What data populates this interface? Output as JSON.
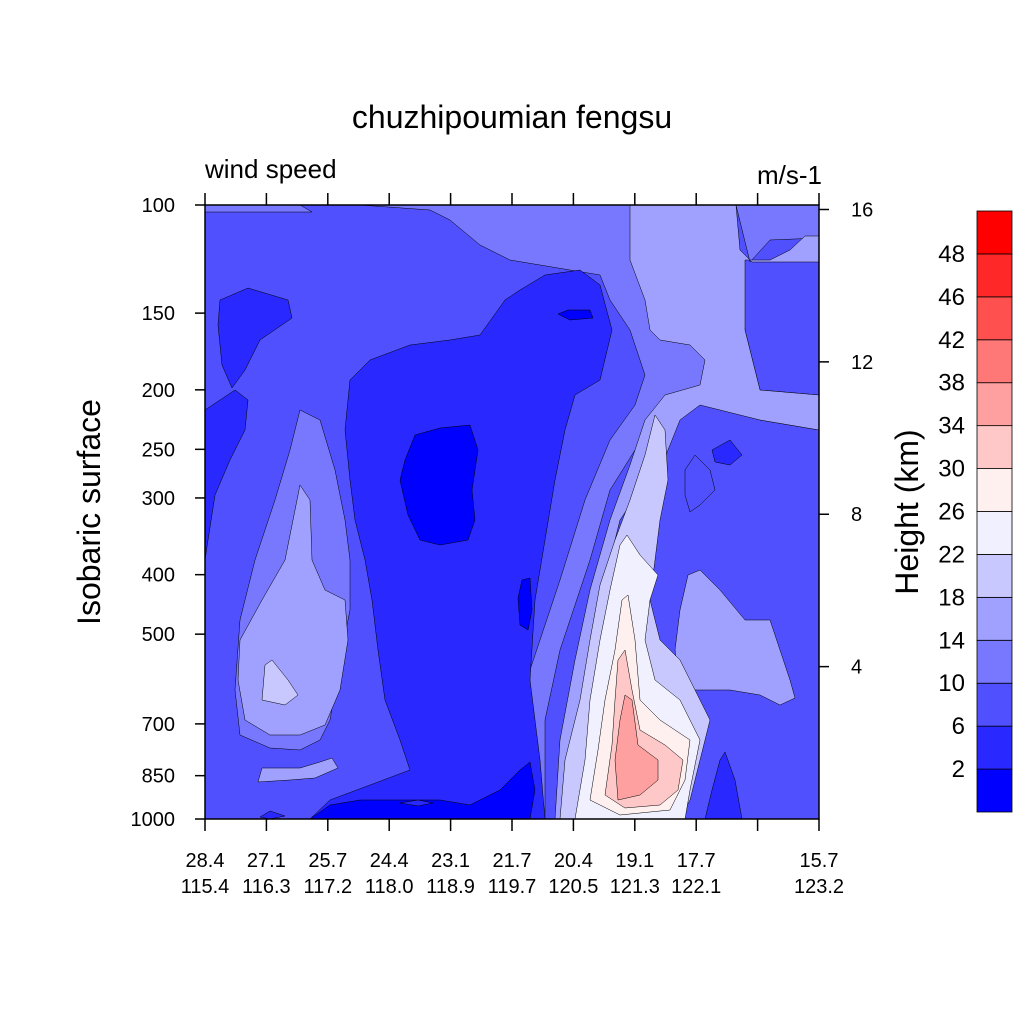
{
  "chart_data": {
    "type": "heatmap",
    "title": "chuzhipoumian fengsu",
    "left_string": "wind speed",
    "right_string": "m/s-1",
    "ylabel": "Isobaric surface",
    "y2label": "Height (km)",
    "y_scale": "log",
    "ylim": [
      1000,
      100
    ],
    "y_ticks": [
      100,
      150,
      200,
      250,
      300,
      400,
      500,
      700,
      850,
      1000
    ],
    "y2_ticks": [
      16,
      12,
      8,
      4
    ],
    "x_ticks": [
      {
        "lat": "28.4",
        "lon": "115.4"
      },
      {
        "lat": "27.1",
        "lon": "116.3"
      },
      {
        "lat": "25.7",
        "lon": "117.2"
      },
      {
        "lat": "24.4",
        "lon": "118.0"
      },
      {
        "lat": "23.1",
        "lon": "118.9"
      },
      {
        "lat": "21.7",
        "lon": "119.7"
      },
      {
        "lat": "20.4",
        "lon": "120.5"
      },
      {
        "lat": "19.1",
        "lon": "121.3"
      },
      {
        "lat": "17.7",
        "lon": "122.1"
      },
      {
        "lat": "",
        "lon": ""
      },
      {
        "lat": "15.7",
        "lon": "123.2"
      }
    ],
    "colorbar": {
      "levels": [
        "2",
        "6",
        "10",
        "14",
        "18",
        "22",
        "26",
        "30",
        "34",
        "38",
        "42",
        "46",
        "48"
      ],
      "colors": [
        "#0000ff",
        "#2828ff",
        "#5050ff",
        "#7878ff",
        "#a0a0ff",
        "#c8c8ff",
        "#f0f0ff",
        "#fff0f0",
        "#ffc8c8",
        "#ffa0a0",
        "#ff7878",
        "#ff5050",
        "#ff2828",
        "#ff0000"
      ],
      "placement": "right"
    },
    "grid": false,
    "fields": [
      {
        "level": "6-10",
        "color": "#5050ff",
        "role": "background"
      },
      {
        "level": "10-14",
        "color": "#7878ff",
        "role": "broad mid-level band"
      },
      {
        "level": "14-18",
        "color": "#a0a0ff",
        "role": "upper right and lower left jets"
      },
      {
        "level": "18-22",
        "color": "#c8c8ff",
        "role": "core flank"
      },
      {
        "level": "22-26",
        "color": "#f0f0ff",
        "role": "core flank"
      },
      {
        "level": "26-30",
        "color": "#fff0f0",
        "role": "core"
      },
      {
        "level": "30-34",
        "color": "#ffc8c8",
        "role": "core"
      },
      {
        "level": "34-38",
        "color": "#ffa0a0",
        "role": "core maximum"
      },
      {
        "level": "2-6",
        "color": "#2828ff",
        "role": "weak wind"
      },
      {
        "level": "0-2",
        "color": "#0000ff",
        "role": "calm pocket"
      }
    ]
  }
}
